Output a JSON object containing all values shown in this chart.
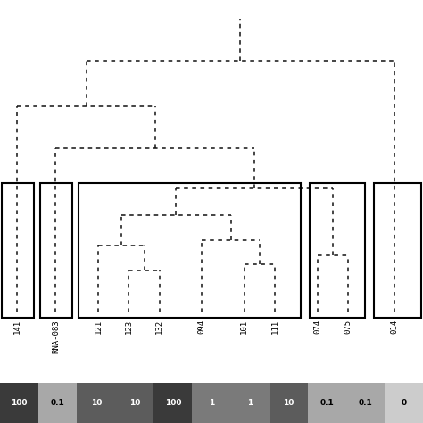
{
  "background_color": "#ffffff",
  "figure_size": [
    4.74,
    4.74
  ],
  "dpi": 100,
  "colorbar_labels": [
    "100",
    "0.1",
    "10",
    "10",
    "100",
    "1",
    "1",
    "10",
    "0.1",
    "0.1",
    "0"
  ],
  "colorbar_colors": [
    "#3a3a3a",
    "#a8a8a8",
    "#5c5c5c",
    "#5c5c5c",
    "#3a3a3a",
    "#7a7a7a",
    "#7a7a7a",
    "#5c5c5c",
    "#a8a8a8",
    "#a8a8a8",
    "#cccccc"
  ],
  "sample_labels": [
    "141",
    "RNA-083",
    "121",
    "123",
    "132",
    "094",
    "101",
    "111",
    "074",
    "075",
    "014"
  ],
  "leaf_x": [
    0.45,
    1.45,
    2.55,
    3.35,
    4.15,
    5.25,
    6.35,
    7.15,
    8.25,
    9.05,
    10.25
  ],
  "n_leaves": 11
}
